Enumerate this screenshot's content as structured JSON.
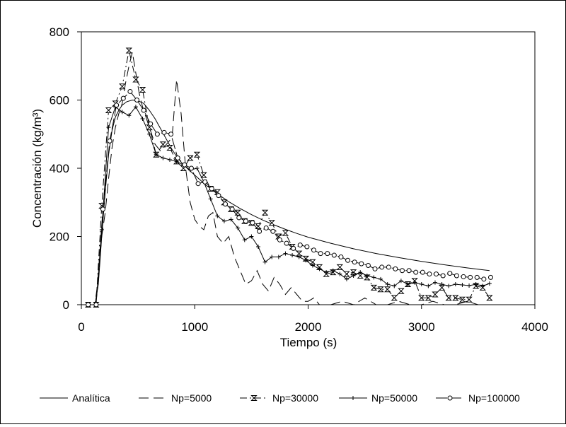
{
  "chart_data": {
    "type": "line",
    "xlabel": "Tiempo (s)",
    "ylabel": "Concentración (kg/m³)",
    "xlim": [
      0,
      4000
    ],
    "ylim": [
      0,
      800
    ],
    "x_ticks": [
      0,
      1000,
      2000,
      3000,
      4000
    ],
    "y_ticks": [
      0,
      200,
      400,
      600,
      800
    ],
    "x_tick_labels": [
      "0",
      "1000",
      "2000",
      "3000",
      "4000"
    ],
    "y_tick_labels": [
      "0",
      "200",
      "400",
      "600",
      "800"
    ],
    "grid": false,
    "legend_position": "bottom",
    "series": [
      {
        "name": "Analítica",
        "style": "solid",
        "marker": "none",
        "points": [
          [
            60,
            0
          ],
          [
            120,
            0
          ],
          [
            150,
            60
          ],
          [
            180,
            200
          ],
          [
            210,
            330
          ],
          [
            240,
            440
          ],
          [
            270,
            510
          ],
          [
            300,
            550
          ],
          [
            330,
            570
          ],
          [
            360,
            585
          ],
          [
            400,
            595
          ],
          [
            450,
            600
          ],
          [
            500,
            598
          ],
          [
            550,
            590
          ],
          [
            600,
            570
          ],
          [
            650,
            545
          ],
          [
            700,
            515
          ],
          [
            750,
            485
          ],
          [
            800,
            455
          ],
          [
            850,
            430
          ],
          [
            900,
            410
          ],
          [
            950,
            395
          ],
          [
            1000,
            380
          ],
          [
            1050,
            365
          ],
          [
            1100,
            350
          ],
          [
            1150,
            338
          ],
          [
            1200,
            325
          ],
          [
            1300,
            302
          ],
          [
            1400,
            282
          ],
          [
            1500,
            264
          ],
          [
            1600,
            248
          ],
          [
            1700,
            234
          ],
          [
            1800,
            221
          ],
          [
            1900,
            209
          ],
          [
            2000,
            198
          ],
          [
            2200,
            180
          ],
          [
            2400,
            164
          ],
          [
            2600,
            150
          ],
          [
            2800,
            138
          ],
          [
            3000,
            127
          ],
          [
            3200,
            117
          ],
          [
            3400,
            108
          ],
          [
            3600,
            100
          ]
        ]
      },
      {
        "name": "Np=5000",
        "style": "dashed",
        "marker": "none",
        "points": [
          [
            60,
            0
          ],
          [
            120,
            0
          ],
          [
            150,
            80
          ],
          [
            180,
            200
          ],
          [
            210,
            270
          ],
          [
            240,
            370
          ],
          [
            270,
            460
          ],
          [
            300,
            520
          ],
          [
            330,
            560
          ],
          [
            360,
            590
          ],
          [
            390,
            650
          ],
          [
            420,
            700
          ],
          [
            450,
            740
          ],
          [
            480,
            680
          ],
          [
            510,
            620
          ],
          [
            540,
            580
          ],
          [
            570,
            550
          ],
          [
            600,
            520
          ],
          [
            650,
            470
          ],
          [
            700,
            450
          ],
          [
            750,
            470
          ],
          [
            800,
            490
          ],
          [
            840,
            660
          ],
          [
            880,
            560
          ],
          [
            920,
            400
          ],
          [
            960,
            300
          ],
          [
            1000,
            250
          ],
          [
            1040,
            230
          ],
          [
            1080,
            220
          ],
          [
            1120,
            260
          ],
          [
            1160,
            270
          ],
          [
            1200,
            200
          ],
          [
            1250,
            180
          ],
          [
            1300,
            200
          ],
          [
            1350,
            140
          ],
          [
            1400,
            100
          ],
          [
            1450,
            60
          ],
          [
            1500,
            70
          ],
          [
            1550,
            100
          ],
          [
            1600,
            60
          ],
          [
            1650,
            40
          ],
          [
            1700,
            80
          ],
          [
            1750,
            60
          ],
          [
            1800,
            30
          ],
          [
            1850,
            50
          ],
          [
            1900,
            30
          ],
          [
            1950,
            10
          ],
          [
            2000,
            10
          ],
          [
            2050,
            20
          ],
          [
            2100,
            0
          ],
          [
            2200,
            0
          ],
          [
            2300,
            10
          ],
          [
            2400,
            0
          ],
          [
            2500,
            20
          ],
          [
            2600,
            0
          ],
          [
            2700,
            0
          ],
          [
            2800,
            10
          ],
          [
            2900,
            0
          ],
          [
            3000,
            0
          ],
          [
            3100,
            10
          ],
          [
            3200,
            0
          ],
          [
            3300,
            0
          ],
          [
            3400,
            10
          ],
          [
            3500,
            0
          ],
          [
            3600,
            0
          ]
        ]
      },
      {
        "name": "Np=30000",
        "style": "dashdot",
        "marker": "hourglass",
        "points": [
          [
            60,
            0
          ],
          [
            130,
            0
          ],
          [
            180,
            290
          ],
          [
            240,
            570
          ],
          [
            300,
            590
          ],
          [
            360,
            640
          ],
          [
            420,
            745
          ],
          [
            480,
            660
          ],
          [
            540,
            630
          ],
          [
            600,
            520
          ],
          [
            660,
            440
          ],
          [
            720,
            470
          ],
          [
            780,
            460
          ],
          [
            840,
            420
          ],
          [
            900,
            400
          ],
          [
            960,
            430
          ],
          [
            1020,
            440
          ],
          [
            1080,
            380
          ],
          [
            1140,
            340
          ],
          [
            1200,
            330
          ],
          [
            1260,
            300
          ],
          [
            1320,
            280
          ],
          [
            1380,
            270
          ],
          [
            1440,
            245
          ],
          [
            1500,
            240
          ],
          [
            1560,
            230
          ],
          [
            1620,
            270
          ],
          [
            1680,
            240
          ],
          [
            1740,
            200
          ],
          [
            1800,
            210
          ],
          [
            1860,
            170
          ],
          [
            1920,
            150
          ],
          [
            1980,
            135
          ],
          [
            2040,
            125
          ],
          [
            2100,
            110
          ],
          [
            2160,
            90
          ],
          [
            2220,
            95
          ],
          [
            2280,
            110
          ],
          [
            2340,
            90
          ],
          [
            2400,
            95
          ],
          [
            2460,
            85
          ],
          [
            2520,
            80
          ],
          [
            2580,
            50
          ],
          [
            2640,
            45
          ],
          [
            2700,
            45
          ],
          [
            2760,
            20
          ],
          [
            2820,
            40
          ],
          [
            2880,
            60
          ],
          [
            2940,
            70
          ],
          [
            3000,
            20
          ],
          [
            3060,
            20
          ],
          [
            3120,
            30
          ],
          [
            3180,
            50
          ],
          [
            3240,
            20
          ],
          [
            3300,
            20
          ],
          [
            3360,
            15
          ],
          [
            3420,
            15
          ],
          [
            3480,
            55
          ],
          [
            3540,
            50
          ],
          [
            3600,
            20
          ]
        ]
      },
      {
        "name": "Np=50000",
        "style": "solid",
        "marker": "plus",
        "points": [
          [
            60,
            0
          ],
          [
            130,
            0
          ],
          [
            180,
            220
          ],
          [
            240,
            520
          ],
          [
            300,
            580
          ],
          [
            360,
            565
          ],
          [
            420,
            555
          ],
          [
            480,
            580
          ],
          [
            540,
            545
          ],
          [
            600,
            500
          ],
          [
            660,
            440
          ],
          [
            720,
            430
          ],
          [
            780,
            425
          ],
          [
            840,
            420
          ],
          [
            900,
            410
          ],
          [
            960,
            395
          ],
          [
            1020,
            400
          ],
          [
            1080,
            360
          ],
          [
            1140,
            310
          ],
          [
            1200,
            260
          ],
          [
            1260,
            245
          ],
          [
            1320,
            250
          ],
          [
            1380,
            225
          ],
          [
            1440,
            190
          ],
          [
            1500,
            200
          ],
          [
            1560,
            170
          ],
          [
            1620,
            125
          ],
          [
            1680,
            140
          ],
          [
            1740,
            140
          ],
          [
            1800,
            150
          ],
          [
            1860,
            145
          ],
          [
            1920,
            140
          ],
          [
            1980,
            130
          ],
          [
            2040,
            115
          ],
          [
            2100,
            105
          ],
          [
            2160,
            95
          ],
          [
            2220,
            100
          ],
          [
            2280,
            90
          ],
          [
            2340,
            75
          ],
          [
            2400,
            85
          ],
          [
            2460,
            95
          ],
          [
            2520,
            85
          ],
          [
            2580,
            80
          ],
          [
            2640,
            75
          ],
          [
            2700,
            60
          ],
          [
            2760,
            55
          ],
          [
            2820,
            70
          ],
          [
            2880,
            60
          ],
          [
            2940,
            65
          ],
          [
            3000,
            60
          ],
          [
            3060,
            55
          ],
          [
            3120,
            65
          ],
          [
            3180,
            60
          ],
          [
            3240,
            55
          ],
          [
            3300,
            60
          ],
          [
            3360,
            58
          ],
          [
            3420,
            56
          ],
          [
            3480,
            60
          ],
          [
            3540,
            55
          ],
          [
            3600,
            62
          ]
        ]
      },
      {
        "name": "Np=100000",
        "style": "longdash",
        "marker": "circle",
        "points": [
          [
            60,
            0
          ],
          [
            130,
            0
          ],
          [
            190,
            280
          ],
          [
            250,
            480
          ],
          [
            310,
            585
          ],
          [
            370,
            605
          ],
          [
            430,
            625
          ],
          [
            490,
            600
          ],
          [
            550,
            570
          ],
          [
            610,
            530
          ],
          [
            670,
            500
          ],
          [
            730,
            505
          ],
          [
            790,
            500
          ],
          [
            850,
            430
          ],
          [
            910,
            410
          ],
          [
            970,
            400
          ],
          [
            1030,
            355
          ],
          [
            1090,
            360
          ],
          [
            1150,
            340
          ],
          [
            1210,
            320
          ],
          [
            1270,
            295
          ],
          [
            1330,
            280
          ],
          [
            1390,
            255
          ],
          [
            1450,
            245
          ],
          [
            1510,
            240
          ],
          [
            1570,
            215
          ],
          [
            1630,
            225
          ],
          [
            1690,
            215
          ],
          [
            1750,
            190
          ],
          [
            1810,
            180
          ],
          [
            1870,
            165
          ],
          [
            1930,
            175
          ],
          [
            1990,
            170
          ],
          [
            2050,
            160
          ],
          [
            2110,
            150
          ],
          [
            2170,
            150
          ],
          [
            2230,
            145
          ],
          [
            2290,
            140
          ],
          [
            2350,
            130
          ],
          [
            2410,
            125
          ],
          [
            2470,
            120
          ],
          [
            2530,
            115
          ],
          [
            2590,
            105
          ],
          [
            2650,
            110
          ],
          [
            2710,
            110
          ],
          [
            2770,
            105
          ],
          [
            2830,
            100
          ],
          [
            2890,
            100
          ],
          [
            2950,
            95
          ],
          [
            3010,
            95
          ],
          [
            3070,
            90
          ],
          [
            3130,
            90
          ],
          [
            3190,
            85
          ],
          [
            3250,
            92
          ],
          [
            3310,
            85
          ],
          [
            3370,
            82
          ],
          [
            3430,
            80
          ],
          [
            3490,
            80
          ],
          [
            3550,
            75
          ],
          [
            3610,
            80
          ]
        ]
      }
    ]
  }
}
